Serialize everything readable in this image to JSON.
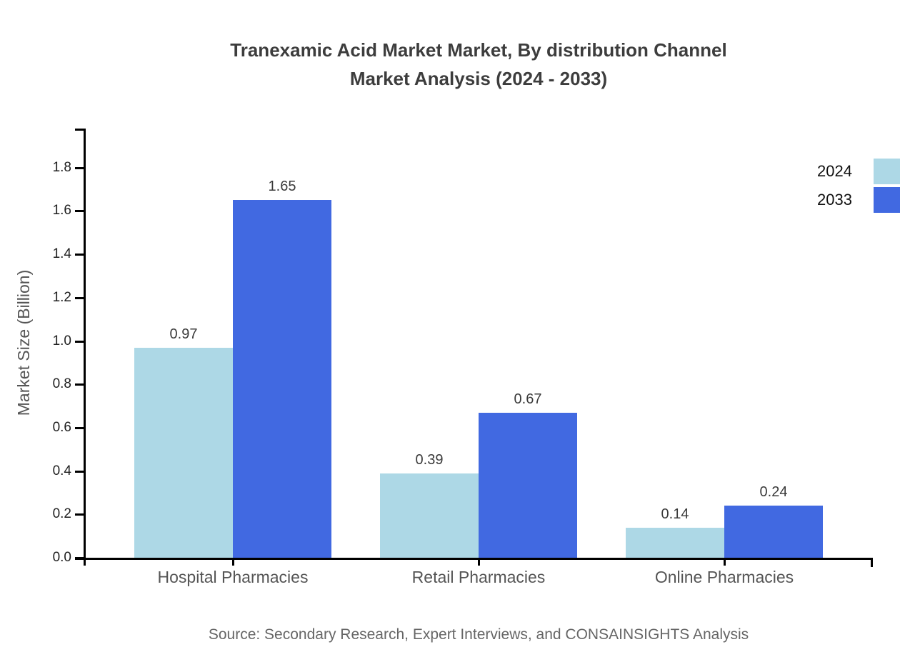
{
  "title": {
    "line1": "Tranexamic Acid Market Market, By distribution Channel",
    "line2": "Market Analysis (2024 - 2033)"
  },
  "legend": {
    "items": [
      {
        "label": "2024",
        "color": "#ADD8E6"
      },
      {
        "label": "2033",
        "color": "#4169E1"
      }
    ]
  },
  "source": "Source: Secondary Research, Expert Interviews, and CONSAINSIGHTS Analysis",
  "chart_data": {
    "type": "bar",
    "title": "Tranexamic Acid Market Market, By distribution Channel Market Analysis (2024 - 2033)",
    "categories": [
      "Hospital Pharmacies",
      "Retail Pharmacies",
      "Online Pharmacies"
    ],
    "series": [
      {
        "name": "2024",
        "color": "#ADD8E6",
        "values": [
          0.97,
          0.39,
          0.14
        ]
      },
      {
        "name": "2033",
        "color": "#4169E1",
        "values": [
          1.65,
          0.67,
          0.24
        ]
      }
    ],
    "xlabel": "",
    "ylabel": "Market Size (Billion)",
    "ylim": [
      0,
      1.98
    ],
    "yticks": [
      0.0,
      0.2,
      0.4,
      0.6,
      0.8,
      1.0,
      1.2,
      1.4,
      1.6,
      1.8
    ],
    "grid": false,
    "bar_value_labels": true,
    "legend_position": "outside-upper-right"
  }
}
